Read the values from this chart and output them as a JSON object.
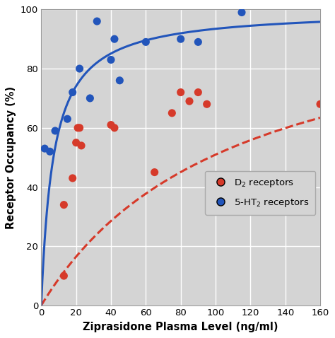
{
  "d2_x": [
    13,
    13,
    18,
    20,
    21,
    22,
    23,
    40,
    42,
    65,
    75,
    80,
    85,
    90,
    95,
    160
  ],
  "d2_y": [
    10,
    34,
    43,
    55,
    60,
    60,
    54,
    61,
    60,
    45,
    65,
    72,
    69,
    72,
    68,
    68
  ],
  "ht2_x": [
    2,
    5,
    8,
    15,
    18,
    22,
    28,
    32,
    40,
    42,
    45,
    60,
    80,
    90,
    115
  ],
  "ht2_y": [
    53,
    52,
    59,
    63,
    72,
    80,
    70,
    96,
    83,
    90,
    76,
    89,
    90,
    89,
    99
  ],
  "d2_curve_Km": 110,
  "d2_curve_Emax": 107,
  "ht2_curve_Km": 7,
  "ht2_curve_Emax": 100,
  "d2_color": "#d63a2a",
  "ht2_color": "#2255bb",
  "bg_color": "#d4d4d4",
  "xlim": [
    0,
    160
  ],
  "ylim": [
    0,
    100
  ],
  "xticks": [
    0,
    20,
    40,
    60,
    80,
    100,
    120,
    140,
    160
  ],
  "yticks": [
    0,
    20,
    40,
    60,
    80,
    100
  ],
  "xlabel": "Ziprasidone Plasma Level (ng/ml)",
  "ylabel": "Receptor Occupancy (%)",
  "legend_d2": "D$_2$ receptors",
  "legend_ht2": "5-HT$_2$ receptors",
  "marker_size": 8,
  "axis_fontsize": 10.5,
  "tick_fontsize": 9.5,
  "legend_fontsize": 9.5
}
